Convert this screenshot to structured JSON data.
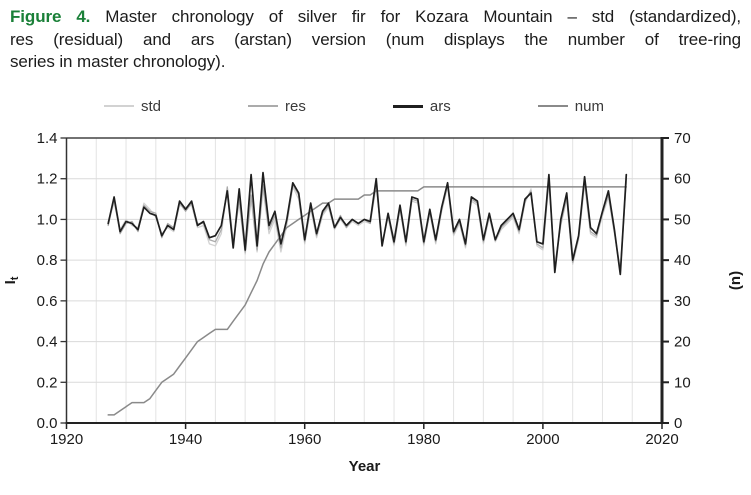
{
  "caption": {
    "figure_label": "Figure 4.",
    "label_color": "#1a8038",
    "line1_rest": "Master chronology of silver fir for Kozara Mountain – std (standardized),",
    "line2": "res (residual) and ars (arstan) version (num displays the number of tree-ring",
    "line3": "series in master chronology)."
  },
  "chart_data": {
    "type": "line",
    "title": "",
    "xlabel": "Year",
    "x_axis": {
      "label": "Year",
      "range": [
        1920,
        2020
      ],
      "ticks": [
        1920,
        1940,
        1960,
        1980,
        2000,
        2020
      ],
      "minor_grid_step": 5
    },
    "y_axis_left": {
      "label": "I_t",
      "label_main": "I",
      "label_sub": "t",
      "range": [
        0,
        1.4
      ],
      "ticks": [
        0.0,
        0.2,
        0.4,
        0.6,
        0.8,
        1.0,
        1.2,
        1.4
      ],
      "tick_labels": [
        "0.0",
        "0.2",
        "0.4",
        "0.6",
        "0.8",
        "1.0",
        "1.2",
        "1.4"
      ]
    },
    "y_axis_right": {
      "label": "(n)",
      "range": [
        0,
        70
      ],
      "ticks": [
        0,
        10,
        20,
        30,
        40,
        50,
        60,
        70
      ]
    },
    "grid": true,
    "legend_position": "top",
    "year_start": 1927,
    "year_end": 2014,
    "series": [
      {
        "name": "std",
        "axis": "left",
        "color": "#d2d2d2",
        "width": 1.3,
        "values": [
          0.99,
          1.08,
          0.95,
          1.0,
          0.97,
          0.96,
          1.08,
          1.05,
          1.01,
          0.93,
          0.96,
          0.94,
          1.07,
          1.06,
          1.07,
          0.96,
          0.97,
          0.88,
          0.87,
          0.93,
          1.15,
          0.9,
          1.08,
          0.83,
          1.1,
          0.84,
          1.15,
          0.93,
          1.0,
          0.84,
          0.97,
          1.16,
          1.1,
          0.88,
          1.05,
          0.91,
          1.02,
          1.06,
          0.95,
          1.0,
          0.96,
          0.99,
          0.97,
          0.99,
          0.98,
          1.16,
          0.89,
          1.01,
          0.87,
          1.05,
          0.87,
          1.09,
          1.08,
          0.87,
          1.03,
          0.88,
          1.04,
          1.16,
          0.92,
          0.98,
          0.86,
          1.09,
          1.07,
          0.88,
          1.01,
          0.89,
          0.95,
          0.98,
          1.01,
          0.93,
          1.08,
          1.15,
          0.87,
          0.85,
          1.18,
          0.78,
          0.97,
          1.1,
          0.78,
          0.9,
          1.17,
          0.93,
          0.91,
          1.02,
          1.11,
          0.93,
          0.76,
          1.18
        ]
      },
      {
        "name": "res",
        "axis": "left",
        "color": "#ababab",
        "width": 1.3,
        "values": [
          0.97,
          1.1,
          0.93,
          0.98,
          0.99,
          0.94,
          1.07,
          1.04,
          1.03,
          0.91,
          0.98,
          0.96,
          1.08,
          1.04,
          1.08,
          0.98,
          0.98,
          0.9,
          0.89,
          0.95,
          1.16,
          0.88,
          1.1,
          0.84,
          1.12,
          0.85,
          1.17,
          0.95,
          1.02,
          0.86,
          0.99,
          1.17,
          1.12,
          0.89,
          1.07,
          0.92,
          1.03,
          1.07,
          0.96,
          1.02,
          0.96,
          1.0,
          0.98,
          1.0,
          0.98,
          1.18,
          0.88,
          1.02,
          0.88,
          1.06,
          0.88,
          1.1,
          1.09,
          0.88,
          1.04,
          0.89,
          1.05,
          1.17,
          0.93,
          0.99,
          0.87,
          1.1,
          1.08,
          0.89,
          1.02,
          0.9,
          0.96,
          0.99,
          1.02,
          0.94,
          1.09,
          1.14,
          0.88,
          0.86,
          1.2,
          0.76,
          0.98,
          1.11,
          0.79,
          0.91,
          1.19,
          0.94,
          0.92,
          1.03,
          1.12,
          0.94,
          0.74,
          1.2
        ]
      },
      {
        "name": "ars",
        "axis": "left",
        "color": "#1f1f1f",
        "width": 1.7,
        "values": [
          0.98,
          1.11,
          0.94,
          0.99,
          0.98,
          0.95,
          1.06,
          1.03,
          1.02,
          0.92,
          0.97,
          0.95,
          1.09,
          1.05,
          1.09,
          0.97,
          0.99,
          0.91,
          0.92,
          0.97,
          1.14,
          0.86,
          1.15,
          0.85,
          1.22,
          0.87,
          1.23,
          0.97,
          1.04,
          0.88,
          1.0,
          1.18,
          1.13,
          0.9,
          1.08,
          0.93,
          1.04,
          1.08,
          0.96,
          1.01,
          0.97,
          1.0,
          0.98,
          1.0,
          0.99,
          1.2,
          0.87,
          1.03,
          0.89,
          1.07,
          0.89,
          1.11,
          1.1,
          0.89,
          1.05,
          0.9,
          1.06,
          1.18,
          0.94,
          1.0,
          0.88,
          1.11,
          1.09,
          0.9,
          1.03,
          0.9,
          0.97,
          1.0,
          1.03,
          0.95,
          1.1,
          1.13,
          0.89,
          0.88,
          1.22,
          0.74,
          1.0,
          1.13,
          0.8,
          0.92,
          1.21,
          0.96,
          0.93,
          1.04,
          1.14,
          0.95,
          0.73,
          1.22
        ]
      },
      {
        "name": "num",
        "axis": "right",
        "color": "#8a8a8a",
        "width": 1.5,
        "values": [
          2,
          2,
          3,
          4,
          5,
          5,
          5,
          6,
          8,
          10,
          11,
          12,
          14,
          16,
          18,
          20,
          21,
          22,
          23,
          23,
          23,
          25,
          27,
          29,
          32,
          35,
          39,
          42,
          44,
          46,
          48,
          49,
          50,
          51,
          52,
          53,
          54,
          54,
          55,
          55,
          55,
          55,
          55,
          56,
          56,
          57,
          57,
          57,
          57,
          57,
          57,
          57,
          57,
          58,
          58,
          58,
          58,
          58,
          58,
          58,
          58,
          58,
          58,
          58,
          58,
          58,
          58,
          58,
          58,
          58,
          58,
          58,
          58,
          58,
          58,
          58,
          58,
          58,
          58,
          58,
          58,
          58,
          58,
          58,
          58,
          58,
          58,
          58
        ]
      }
    ],
    "colors": {
      "h_gridline": "#dadada",
      "v_gridline": "#e3e3e3",
      "axis_left": "#333333",
      "axis_top": "#444444",
      "axis_bottom": "#222222",
      "axis_right": "#222222"
    }
  }
}
